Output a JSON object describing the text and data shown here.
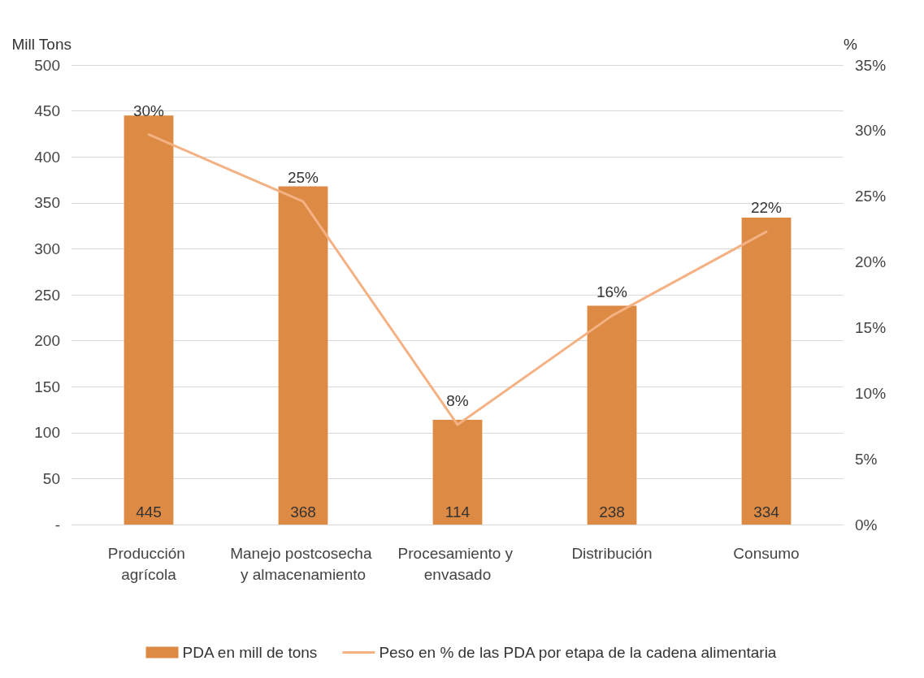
{
  "chart_data": {
    "type": "bar",
    "categories": [
      "Producción agrícola",
      "Manejo postcosecha y almacenamiento",
      "Procesamiento y envasado",
      "Distribución",
      "Consumo"
    ],
    "series": [
      {
        "name": "PDA en mill de tons",
        "color": "#dd8a44",
        "values": [
          445,
          368,
          114,
          238,
          334
        ],
        "value_labels": [
          "445",
          "368",
          "114",
          "238",
          "334"
        ]
      },
      {
        "name": "Peso en % de las PDA por etapa de la cadena alimentaria",
        "type": "line",
        "axis": "y2",
        "color": "#f4b183",
        "values": [
          29.7,
          24.6,
          7.6,
          15.9,
          22.3
        ],
        "value_labels": [
          "30%",
          "25%",
          "8%",
          "16%",
          "22%"
        ]
      }
    ],
    "ylabel": "Mill Tons",
    "y2label": "%",
    "ylim": [
      0,
      500
    ],
    "yticks": [
      {
        "value": 0,
        "label": "-"
      },
      50,
      100,
      150,
      200,
      250,
      300,
      350,
      400,
      450,
      500
    ],
    "y2lim": [
      0,
      35
    ],
    "y2ticks": [
      {
        "value": 0,
        "label": "0%"
      },
      {
        "value": 5,
        "label": "5%"
      },
      {
        "value": 10,
        "label": "10%"
      },
      {
        "value": 15,
        "label": "15%"
      },
      {
        "value": 20,
        "label": "20%"
      },
      {
        "value": 25,
        "label": "25%"
      },
      {
        "value": 30,
        "label": "30%"
      },
      {
        "value": 35,
        "label": "35%"
      }
    ],
    "grid": "y",
    "legend": "bottom",
    "marker": "none",
    "line_style": "solid"
  }
}
